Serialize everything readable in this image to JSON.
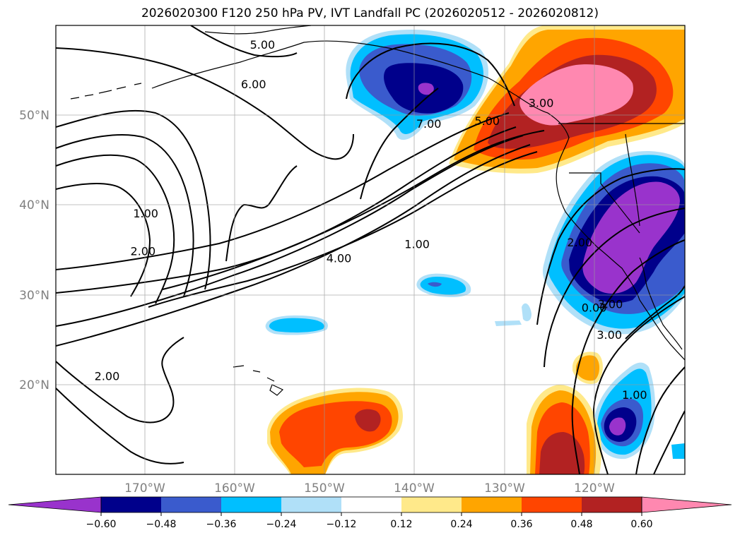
{
  "title": "2026020300 F120 250 hPa PV, IVT Landfall PC (2026020512 - 2026020812)",
  "map": {
    "projection": "PlateCarree",
    "lon_range": [
      -180,
      -110
    ],
    "lat_range": [
      10,
      60
    ],
    "lat_ticks": [
      {
        "value": 50,
        "label": "50°N"
      },
      {
        "value": 40,
        "label": "40°N"
      },
      {
        "value": 30,
        "label": "30°N"
      },
      {
        "value": 20,
        "label": "20°N"
      }
    ],
    "lon_ticks": [
      {
        "value": -170,
        "label": "170°W"
      },
      {
        "value": -160,
        "label": "160°W"
      },
      {
        "value": -150,
        "label": "150°W"
      },
      {
        "value": -140,
        "label": "140°W"
      },
      {
        "value": -130,
        "label": "130°W"
      },
      {
        "value": -120,
        "label": "120°W"
      }
    ],
    "contour_labels": [
      {
        "text": "5.00",
        "lon": -157,
        "lat": 57.8
      },
      {
        "text": "6.00",
        "lon": -158,
        "lat": 53.4
      },
      {
        "text": "7.00",
        "lon": -138.5,
        "lat": 49
      },
      {
        "text": "5.00",
        "lon": -132,
        "lat": 49.3
      },
      {
        "text": "3.00",
        "lon": -126,
        "lat": 51.3
      },
      {
        "text": "1.00",
        "lon": -170,
        "lat": 39
      },
      {
        "text": "2.00",
        "lon": -170.3,
        "lat": 34.8
      },
      {
        "text": "4.00",
        "lon": -148.5,
        "lat": 34
      },
      {
        "text": "1.00",
        "lon": -139.8,
        "lat": 35.6
      },
      {
        "text": "2.00",
        "lon": -121.7,
        "lat": 35.8
      },
      {
        "text": "3.00",
        "lon": -118.3,
        "lat": 28.9
      },
      {
        "text": "3.00",
        "lon": -118.4,
        "lat": 25.5
      },
      {
        "text": "1.00",
        "lon": -115.6,
        "lat": 18.8
      },
      {
        "text": "2.00",
        "lon": -174.3,
        "lat": 20.9
      },
      {
        "text": "0.00",
        "lon": -120.1,
        "lat": 28.5
      }
    ]
  },
  "colorbar": {
    "ticks": [
      "−0.60",
      "−0.48",
      "−0.36",
      "−0.24",
      "−0.12",
      "0.12",
      "0.24",
      "0.36",
      "0.48",
      "0.60"
    ],
    "colors": [
      "#9933cc",
      "#00008b",
      "#3a5bcd",
      "#00bfff",
      "#b0e0f8",
      "#ffffff",
      "#ffe98a",
      "#ffa500",
      "#ff4500",
      "#b22222",
      "#ff88b0"
    ]
  },
  "colors": {
    "purple": "#9933cc",
    "navy": "#00008b",
    "royal": "#3a5bcd",
    "cyan": "#00bfff",
    "lightblue": "#b0e0f8",
    "lightyellow": "#ffe98a",
    "orange": "#ffa500",
    "redorange": "#ff4500",
    "firebrick": "#b22222",
    "pink": "#ff88b0"
  }
}
